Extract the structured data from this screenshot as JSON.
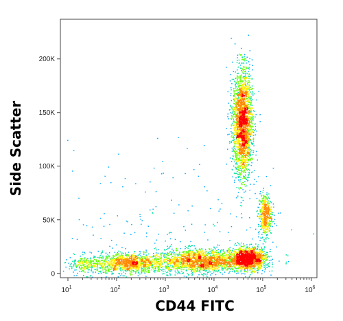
{
  "chart_data": {
    "type": "scatter",
    "style": "density-dot-plot",
    "xlabel": "CD44 FITC",
    "ylabel": "Side Scatter",
    "x_scale": "log",
    "y_scale": "linear",
    "xlim": [
      7,
      1300000
    ],
    "ylim": [
      -4000,
      237000
    ],
    "x_ticks": [
      {
        "value": 10,
        "base": "10",
        "exp": "1"
      },
      {
        "value": 100,
        "base": "10",
        "exp": "2"
      },
      {
        "value": 1000,
        "base": "10",
        "exp": "3"
      },
      {
        "value": 10000,
        "base": "10",
        "exp": "4"
      },
      {
        "value": 100000,
        "base": "10",
        "exp": "5"
      },
      {
        "value": 1000000,
        "base": "10",
        "exp": "6"
      }
    ],
    "y_ticks": [
      {
        "value": 0,
        "label": "0"
      },
      {
        "value": 50000,
        "label": "50K"
      },
      {
        "value": 100000,
        "label": "100K"
      },
      {
        "value": 150000,
        "label": "150K"
      },
      {
        "value": 200000,
        "label": "200K"
      }
    ],
    "populations": [
      {
        "x_center": 180,
        "y_center": 10000,
        "x_spread_decades": 0.35,
        "y_spread": 4500,
        "events": 1100
      },
      {
        "x_center": 25,
        "y_center": 8000,
        "x_spread_decades": 0.25,
        "y_spread": 4500,
        "events": 250
      },
      {
        "x_center": 5000,
        "y_center": 12000,
        "x_spread_decades": 0.45,
        "y_spread": 5500,
        "events": 1800
      },
      {
        "x_center": 50000,
        "y_center": 14000,
        "x_spread_decades": 0.18,
        "y_spread": 5000,
        "events": 1500
      },
      {
        "x_center": 38000,
        "y_center": 140000,
        "x_spread_decades": 0.1,
        "y_spread": 25000,
        "events": 2400
      },
      {
        "x_center": 110000,
        "y_center": 55000,
        "x_spread_decades": 0.07,
        "y_spread": 10000,
        "events": 500
      },
      {
        "x_center": 3000,
        "y_center": 40000,
        "x_spread_decades": 1.2,
        "y_spread": 40000,
        "events": 220
      }
    ],
    "colors": [
      "#0000ff",
      "#00aaff",
      "#00e5a0",
      "#66ff00",
      "#ffee00",
      "#ff8800",
      "#ff0000"
    ],
    "frame_color": "#444444",
    "grid": false
  }
}
